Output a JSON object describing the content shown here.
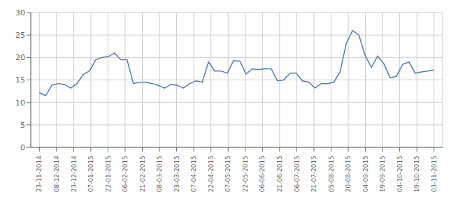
{
  "chart_data": {
    "type": "line",
    "color": "#4D7EBE",
    "grid": true,
    "x": [
      0,
      0.365079,
      0.730159,
      1.095238,
      1.460317,
      1.825397,
      2.190476,
      2.555556,
      2.920635,
      3.285714,
      3.650794,
      4.015873,
      4.380952,
      4.746032,
      5.111111,
      5.47619,
      5.84127,
      6.206349,
      6.571429,
      6.936508,
      7.301587,
      7.666667,
      8.031746,
      8.396825,
      8.761905,
      9.126984,
      9.492063,
      9.857143,
      10.222222,
      10.587302,
      10.952381,
      11.31746,
      11.68254,
      12.047619,
      12.412698,
      12.777778,
      13.142857,
      13.507937,
      13.873016,
      14.238095,
      14.603175,
      14.968254,
      15.333333,
      15.698413,
      16.063492,
      16.428571,
      16.793651,
      17.15873,
      17.52381,
      17.888889,
      18.253968,
      18.619048,
      18.984127,
      19.349206,
      19.714286,
      20.079365,
      20.444444,
      20.809524,
      21.174603,
      21.539683,
      21.904762,
      22.269841,
      22.634921,
      23
    ],
    "values": [
      12.2,
      11.5,
      13.8,
      14.2,
      14.0,
      13.2,
      14.2,
      16.2,
      17.0,
      19.5,
      20.0,
      20.2,
      21.0,
      19.5,
      19.5,
      14.2,
      14.5,
      14.5,
      14.2,
      13.8,
      13.2,
      14.0,
      13.8,
      13.2,
      14.2,
      14.8,
      14.5,
      19.0,
      17.0,
      17.0,
      16.5,
      19.3,
      19.2,
      16.3,
      17.5,
      17.3,
      17.5,
      17.5,
      14.8,
      15.0,
      16.5,
      16.5,
      14.8,
      14.5,
      13.2,
      14.2,
      14.2,
      14.5,
      16.8,
      23.2,
      26.0,
      25.0,
      20.5,
      17.8,
      20.3,
      18.6,
      15.5,
      15.8,
      18.5,
      19.0,
      16.5,
      16.8,
      17.0,
      17.2
    ],
    "xlim": [
      -0.5,
      23.5
    ],
    "xticks": [
      {
        "value": 0,
        "label": "23-11-2014"
      },
      {
        "value": 1,
        "label": "08-12-2014"
      },
      {
        "value": 2,
        "label": "23-12-2014"
      },
      {
        "value": 3,
        "label": "07-01-2015"
      },
      {
        "value": 4,
        "label": "22-01-2015"
      },
      {
        "value": 5,
        "label": "06-02-2015"
      },
      {
        "value": 6,
        "label": "21-02-2015"
      },
      {
        "value": 7,
        "label": "08-03-2015"
      },
      {
        "value": 8,
        "label": "23-03-2015"
      },
      {
        "value": 9,
        "label": "07-04-2015"
      },
      {
        "value": 10,
        "label": "22-04-2015"
      },
      {
        "value": 11,
        "label": "07-05-2015"
      },
      {
        "value": 12,
        "label": "22-05-2015"
      },
      {
        "value": 13,
        "label": "06-06-2015"
      },
      {
        "value": 14,
        "label": "21-06-2015"
      },
      {
        "value": 15,
        "label": "06-07-2015"
      },
      {
        "value": 16,
        "label": "21-07-2015"
      },
      {
        "value": 17,
        "label": "05-08-2015"
      },
      {
        "value": 18,
        "label": "20-08-2015"
      },
      {
        "value": 19,
        "label": "04-09-2015"
      },
      {
        "value": 20,
        "label": "19-09-2015"
      },
      {
        "value": 21,
        "label": "04-10-2015"
      },
      {
        "value": 22,
        "label": "19-10-2015"
      },
      {
        "value": 23,
        "label": "03-11-2015"
      }
    ],
    "ylim": [
      0,
      30
    ],
    "yticks": [
      0,
      5,
      10,
      15,
      20,
      25,
      30
    ]
  }
}
